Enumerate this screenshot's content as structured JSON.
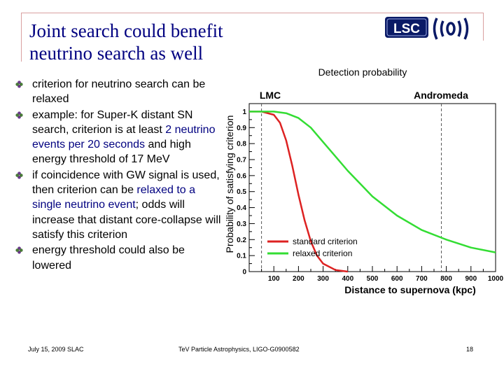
{
  "slide": {
    "title_line1": "Joint search could benefit",
    "title_line2": "neutrino search as well",
    "logo_text": "LSC",
    "bullets": [
      {
        "parts": [
          {
            "text": "criterion for neutrino search can be relaxed",
            "highlight": false
          }
        ]
      },
      {
        "parts": [
          {
            "text": "example: for Super-K distant SN search, criterion is at least ",
            "highlight": false
          },
          {
            "text": "2 neutrino events per 20 seconds",
            "highlight": true
          },
          {
            "text": " and high energy threshold of 17 MeV",
            "highlight": false
          }
        ]
      },
      {
        "parts": [
          {
            "text": "if coincidence with GW signal is used, then criterion can be ",
            "highlight": false
          },
          {
            "text": "relaxed to a single neutrino event",
            "highlight": true
          },
          {
            "text": "; odds will increase that distant core-collapse will satisfy this criterion",
            "highlight": false
          }
        ]
      },
      {
        "parts": [
          {
            "text": "energy threshold could also be lowered",
            "highlight": false
          }
        ]
      }
    ],
    "footer_left": "July 15, 2009  SLAC",
    "footer_center": "TeV Particle Astrophysics,  LIGO-G0900582",
    "footer_page": "18"
  },
  "colors": {
    "title": "#000080",
    "highlight": "#000080",
    "standard": "#dd2222",
    "relaxed": "#33dd33"
  },
  "chart_data": {
    "type": "line",
    "title": "Detection probability",
    "xlabel": "Distance to supernova (kpc)",
    "ylabel": "Probability of satisfying criterion",
    "xlim": [
      0,
      1000
    ],
    "ylim": [
      0,
      1.05
    ],
    "x_ticks": [
      100,
      200,
      300,
      400,
      500,
      600,
      700,
      800,
      900,
      1000
    ],
    "y_ticks": [
      0,
      0.1,
      0.2,
      0.3,
      0.4,
      0.5,
      0.6,
      0.7,
      0.8,
      0.9,
      1
    ],
    "grid": false,
    "annotations": [
      {
        "text": "LMC",
        "x": 50
      },
      {
        "text": "Andromeda",
        "x": 780
      }
    ],
    "series": [
      {
        "name": "standard criterion",
        "color": "#dd2222",
        "x": [
          0,
          50,
          100,
          125,
          150,
          175,
          200,
          225,
          250,
          275,
          300,
          350,
          400
        ],
        "y": [
          1.0,
          1.0,
          0.98,
          0.93,
          0.82,
          0.66,
          0.48,
          0.32,
          0.19,
          0.1,
          0.05,
          0.01,
          0.0
        ]
      },
      {
        "name": "relaxed criterion",
        "color": "#33dd33",
        "x": [
          0,
          100,
          150,
          200,
          250,
          300,
          350,
          400,
          450,
          500,
          600,
          700,
          800,
          900,
          1000
        ],
        "y": [
          1.0,
          1.0,
          0.99,
          0.96,
          0.9,
          0.81,
          0.72,
          0.63,
          0.55,
          0.47,
          0.35,
          0.26,
          0.2,
          0.15,
          0.12
        ]
      }
    ]
  }
}
